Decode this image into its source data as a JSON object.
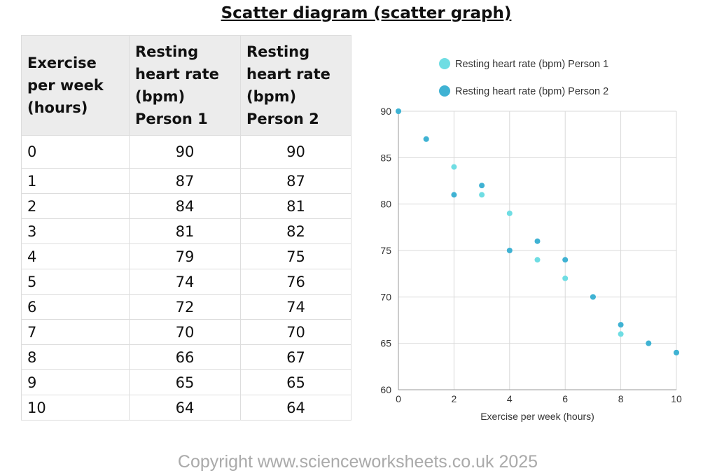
{
  "title": "Scatter diagram (scatter graph)",
  "table": {
    "headers": [
      "Exercise per week (hours)",
      "Resting heart rate (bpm) Person 1",
      "Resting heart rate (bpm) Person 2"
    ],
    "rows": [
      [
        "0",
        "90",
        "90"
      ],
      [
        "1",
        "87",
        "87"
      ],
      [
        "2",
        "84",
        "81"
      ],
      [
        "3",
        "81",
        "82"
      ],
      [
        "4",
        "79",
        "75"
      ],
      [
        "5",
        "74",
        "76"
      ],
      [
        "6",
        "72",
        "74"
      ],
      [
        "7",
        "70",
        "70"
      ],
      [
        "8",
        "66",
        "67"
      ],
      [
        "9",
        "65",
        "65"
      ],
      [
        "10",
        "64",
        "64"
      ]
    ]
  },
  "chart_data": {
    "type": "scatter",
    "xlabel": "Exercise per week (hours)",
    "ylabel": "",
    "xlim": [
      0,
      10
    ],
    "ylim": [
      60,
      90
    ],
    "xticks": [
      0,
      2,
      4,
      6,
      8,
      10
    ],
    "yticks": [
      60,
      65,
      70,
      75,
      80,
      85,
      90
    ],
    "grid": true,
    "legend_position": "top",
    "x": [
      0,
      1,
      2,
      3,
      4,
      5,
      6,
      7,
      8,
      9,
      10
    ],
    "series": [
      {
        "name": "Resting heart rate (bpm) Person 1",
        "color": "#6fdde3",
        "values": [
          90,
          87,
          84,
          81,
          79,
          74,
          72,
          70,
          66,
          65,
          64
        ]
      },
      {
        "name": "Resting heart rate (bpm) Person 2",
        "color": "#3fb2d3",
        "values": [
          90,
          87,
          81,
          82,
          75,
          76,
          74,
          70,
          67,
          65,
          64
        ]
      }
    ]
  },
  "footer": {
    "copyright": "Copyright www.scienceworksheets.co.uk 2025"
  }
}
